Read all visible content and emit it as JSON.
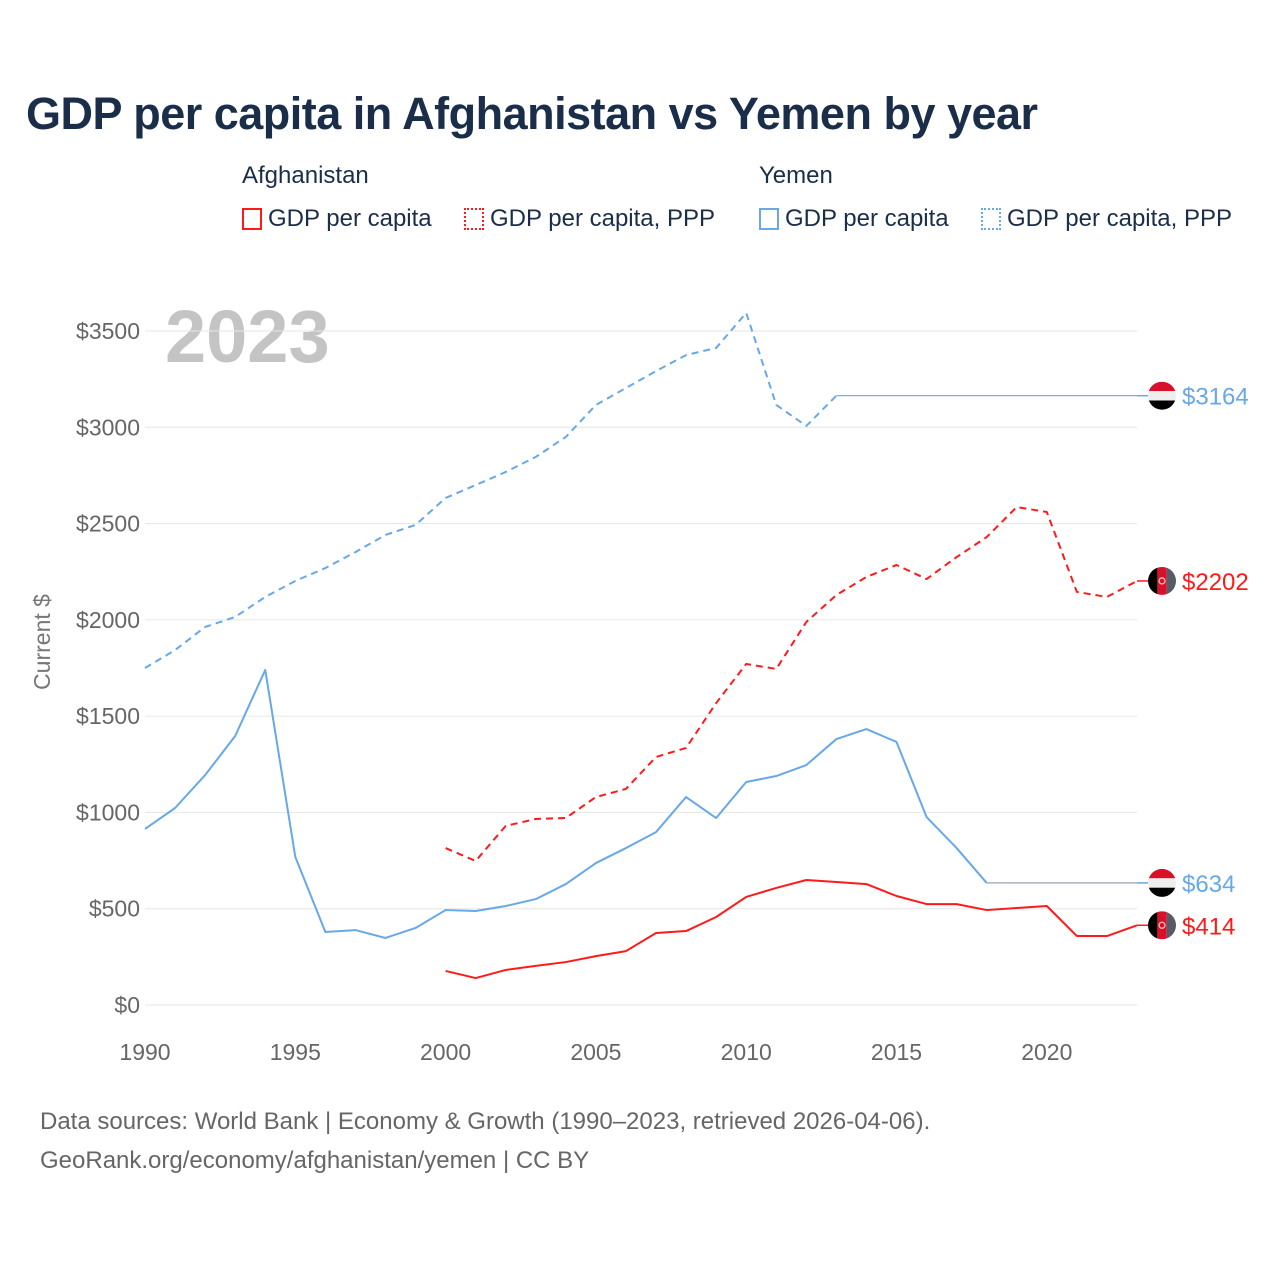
{
  "title": "GDP per capita in Afghanistan vs Yemen by year",
  "legend": {
    "groups": [
      {
        "name": "Afghanistan",
        "items": [
          "GDP per capita",
          "GDP per capita, PPP"
        ],
        "color": "#ff1a1a"
      },
      {
        "name": "Yemen",
        "items": [
          "GDP per capita",
          "GDP per capita, PPP"
        ],
        "color": "#66a8e8"
      }
    ]
  },
  "footer": {
    "line1": "Data sources: World Bank | Economy & Growth (1990–2023, retrieved 2026-04-06).",
    "line2": "GeoRank.org/economy/afghanistan/yemen | CC BY"
  },
  "chart_data": {
    "type": "line",
    "title": "GDP per capita in Afghanistan vs Yemen by year",
    "year_label": "2023",
    "ylabel": "Current $",
    "xlabel": "",
    "xlim": [
      1990,
      2023
    ],
    "ylim": [
      0,
      3600
    ],
    "x_ticks": [
      "1990",
      "1995",
      "2000",
      "2005",
      "2010",
      "2015",
      "2020"
    ],
    "y_ticks": [
      "$0",
      "$500",
      "$1000",
      "$1500",
      "$2000",
      "$2500",
      "$3000",
      "$3500"
    ],
    "grid": true,
    "series": [
      {
        "name": "Yemen GDP per capita, PPP",
        "country": "Yemen",
        "style": "dashed",
        "color": "#66a8e8",
        "start_year": 1990,
        "values": [
          1750,
          1843,
          1963,
          2015,
          2119,
          2202,
          2269,
          2352,
          2441,
          2493,
          2633,
          2700,
          2768,
          2846,
          2950,
          3116,
          3204,
          3292,
          3375,
          3412,
          3594,
          3116,
          3007,
          3164
        ],
        "latest_label": "$3164",
        "latest_value": 3164
      },
      {
        "name": "Afghanistan GDP per capita, PPP",
        "country": "Afghanistan",
        "style": "dashed",
        "color": "#ff1a1a",
        "start_year": 2000,
        "values": [
          815,
          748,
          930,
          966,
          971,
          1080,
          1122,
          1288,
          1335,
          1568,
          1771,
          1745,
          1989,
          2129,
          2223,
          2285,
          2212,
          2326,
          2430,
          2586,
          2560,
          2145,
          2119,
          2202
        ],
        "latest_label": "$2202",
        "latest_value": 2202
      },
      {
        "name": "Yemen GDP per capita",
        "country": "Yemen",
        "style": "solid",
        "color": "#66a8e8",
        "start_year": 1990,
        "values": [
          914,
          1023,
          1194,
          1397,
          1740,
          769,
          379,
          389,
          348,
          400,
          493,
          488,
          514,
          550,
          628,
          737,
          815,
          898,
          1080,
          971,
          1158,
          1189,
          1246,
          1381,
          1433,
          1366,
          976,
          815,
          634
        ],
        "latest_label": "$634",
        "latest_value": 634
      },
      {
        "name": "Afghanistan GDP per capita",
        "country": "Afghanistan",
        "style": "solid",
        "color": "#ff1a1a",
        "start_year": 2000,
        "values": [
          177,
          140,
          182,
          203,
          223,
          254,
          280,
          374,
          384,
          457,
          561,
          608,
          649,
          639,
          628,
          566,
          524,
          524,
          493,
          504,
          514,
          358,
          358,
          414
        ],
        "latest_label": "$414",
        "latest_value": 414
      }
    ]
  }
}
